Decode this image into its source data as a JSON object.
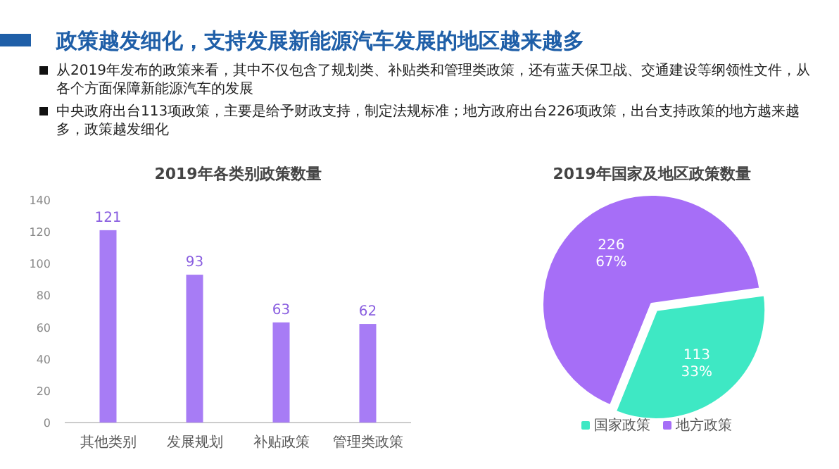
{
  "chart_data": [
    {
      "type": "other",
      "title": "政策越发细化，支持发展新能源汽车发展的地区越来越多",
      "annotations": [
        "从2019年发布的政策来看，其中不仅包含了规划类、补贴类和管理类政策，还有蓝天保卫战、交通建设等纲领性文件，从各个方面保障新能源汽车的发展",
        "中央政府出台113项政策，主要是给予财政支持，制定法规标准；地方政府出台226项政策，出台支持政策的地方越来越多，政策越发细化"
      ]
    },
    {
      "type": "bar",
      "title": "2019年各类别政策数量",
      "categories": [
        "其他类别",
        "发展规划",
        "补贴政策",
        "管理类政策"
      ],
      "values": [
        121,
        93,
        63,
        62
      ],
      "color": "#a77cf5",
      "ylim": [
        0,
        140
      ],
      "yticks": [
        0,
        20,
        40,
        60,
        80,
        100,
        120,
        140
      ],
      "data_labels": true
    },
    {
      "type": "pie",
      "title": "2019年国家及地区政策数量",
      "categories": [
        "国家政策",
        "地方政策"
      ],
      "values": [
        113,
        226
      ],
      "colors": [
        "#3ee8c4",
        "#a66ef7"
      ],
      "value_labels": [
        "113\n33%",
        "226\n67%"
      ],
      "legend": "bottom"
    }
  ]
}
